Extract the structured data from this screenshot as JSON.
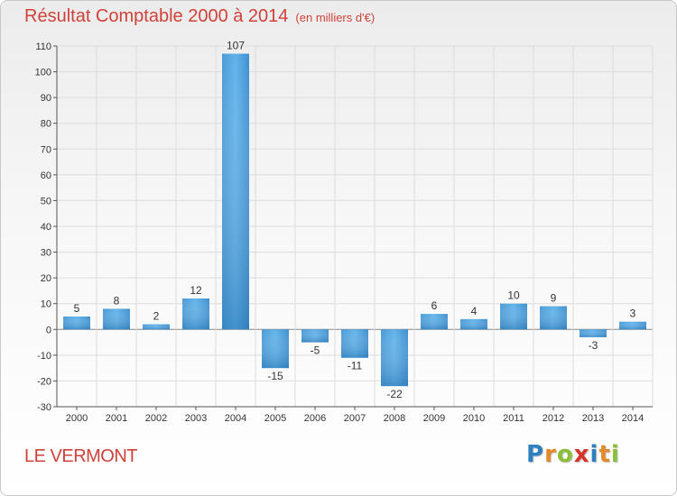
{
  "header": {
    "title": "Résultat Comptable 2000 à 2014",
    "unit": "(en milliers d'€)"
  },
  "footer": {
    "commune": "LE VERMONT",
    "logo_text": "Proxiti"
  },
  "colors": {
    "title": "#d0413a",
    "bar_light": "#5aaee6",
    "bar_dark": "#2a7fbf",
    "grid": "#dcdcdc",
    "axis": "#555555"
  },
  "logo_letters": [
    {
      "ch": "P",
      "color": "#2e7fc0"
    },
    {
      "ch": "r",
      "color": "#e2892b"
    },
    {
      "ch": "o",
      "color": "#8bbf3a"
    },
    {
      "ch": "x",
      "color": "#d8332a"
    },
    {
      "ch": "i",
      "color": "#2e7fc0"
    },
    {
      "ch": "t",
      "color": "#e2892b"
    },
    {
      "ch": "i",
      "color": "#8bbf3a"
    }
  ],
  "chart_data": {
    "type": "bar",
    "title": "Résultat Comptable 2000 à 2014",
    "ylabel": "",
    "xlabel": "",
    "categories": [
      "2000",
      "2001",
      "2002",
      "2003",
      "2004",
      "2005",
      "2006",
      "2007",
      "2008",
      "2009",
      "2010",
      "2011",
      "2012",
      "2013",
      "2014"
    ],
    "values": [
      5,
      8,
      2,
      12,
      107,
      -15,
      -5,
      -11,
      -22,
      6,
      4,
      10,
      9,
      -3,
      3
    ],
    "ylim": [
      -30,
      110
    ],
    "yticks": [
      110,
      100,
      90,
      80,
      70,
      60,
      50,
      40,
      30,
      20,
      10,
      0,
      -10,
      -20,
      -30
    ],
    "grid": true,
    "legend": "none"
  }
}
